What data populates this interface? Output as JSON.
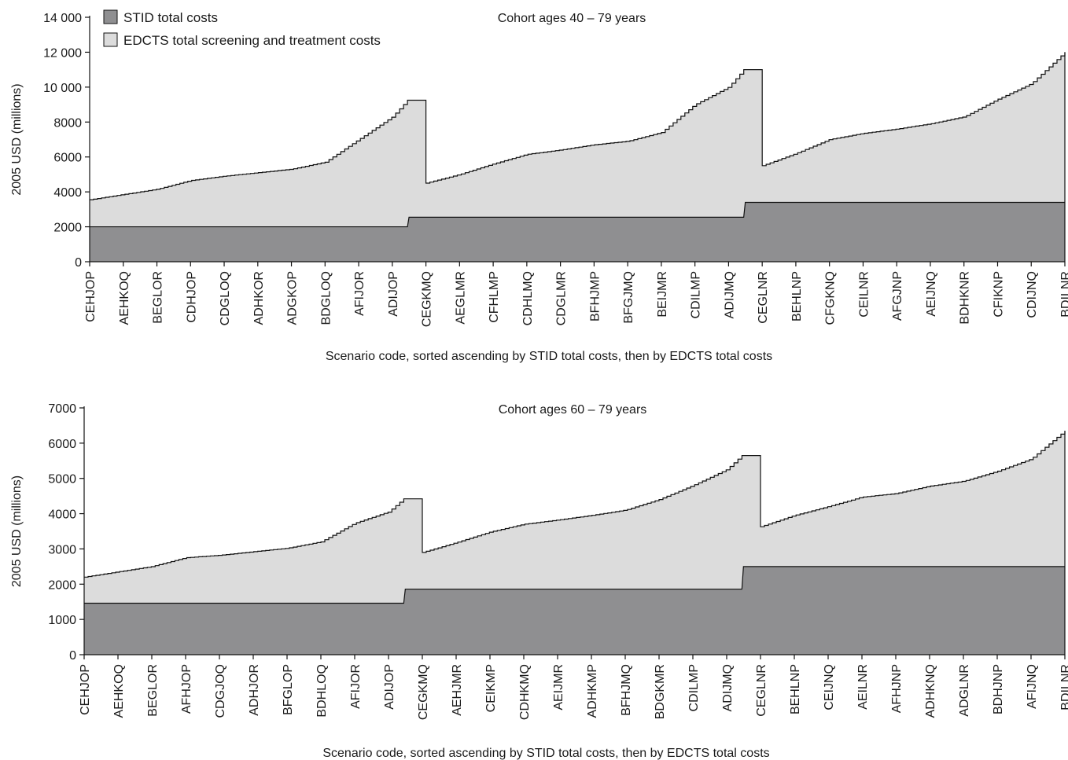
{
  "chart_data": [
    {
      "type": "area",
      "title": "Cohort ages 40 – 79 years",
      "xlabel": "Scenario code, sorted ascending by STID total costs, then by EDCTS total costs",
      "ylabel": "2005 USD (millions)",
      "ylim": [
        0,
        14000
      ],
      "yticks": [
        "0",
        "2000",
        "4000",
        "6000",
        "8000",
        "10 000",
        "12 000",
        "14 000"
      ],
      "yticks_values": [
        0,
        2000,
        4000,
        6000,
        8000,
        10000,
        12000,
        14000
      ],
      "categories": [
        "CEHJOP",
        "AEHKOQ",
        "BEGLOR",
        "CDHJOP",
        "CDGLOQ",
        "ADHKOR",
        "ADGKOP",
        "BDGLOQ",
        "AFIJOR",
        "ADIJOP",
        "CEGKMQ",
        "AEGLMR",
        "CFHLMP",
        "CDHLMQ",
        "CDGLMR",
        "BFHJMP",
        "BFGJMQ",
        "BEIJMR",
        "CDILMP",
        "ADIJMQ",
        "CEGLNR",
        "BEHLNP",
        "CFGKNQ",
        "CEILNR",
        "AFGJNP",
        "AEIJNQ",
        "BDHKNR",
        "CFIKNP",
        "CDIJNQ",
        "BDILNR"
      ],
      "legend": {
        "position": "top-left",
        "entries": [
          "STID total costs",
          "EDCTS total screening and treatment costs"
        ]
      },
      "grid": false,
      "series": [
        {
          "name": "STID total costs",
          "color": "#8f8f91",
          "values": [
            2000,
            2000,
            2000,
            2000,
            2000,
            2000,
            2000,
            2000,
            2000,
            2000,
            2550,
            2550,
            2550,
            2550,
            2550,
            2550,
            2550,
            2550,
            2550,
            2550,
            3400,
            3400,
            3400,
            3400,
            3400,
            3400,
            3400,
            3400,
            3400,
            3400
          ]
        },
        {
          "name": "EDCTS total screening and treatment costs",
          "color": "#dcdcdc",
          "values": [
            3550,
            3850,
            4150,
            4650,
            4900,
            5100,
            5300,
            5700,
            7000,
            8300,
            4500,
            5000,
            5600,
            6150,
            6400,
            6700,
            6900,
            7400,
            9000,
            10000,
            5500,
            6200,
            7000,
            7350,
            7600,
            7900,
            8300,
            9300,
            10200,
            12000
          ]
        }
      ],
      "series_end_values": {
        "STID total costs": 3400,
        "EDCTS total screening and treatment costs": 12150
      },
      "stid_step_end_values": [
        2000,
        2550,
        3400
      ],
      "edcts_group_end_values": [
        9250,
        11000,
        12150
      ]
    },
    {
      "type": "area",
      "title": "Cohort ages 60 – 79 years",
      "xlabel": "Scenario code, sorted ascending by STID total costs, then by EDCTS total costs",
      "ylabel": "2005 USD (millions)",
      "ylim": [
        0,
        7000
      ],
      "yticks": [
        "0",
        "1000",
        "2000",
        "3000",
        "4000",
        "5000",
        "6000",
        "7000"
      ],
      "yticks_values": [
        0,
        1000,
        2000,
        3000,
        4000,
        5000,
        6000,
        7000
      ],
      "categories": [
        "CEHJOP",
        "AEHKOQ",
        "BEGLOR",
        "AFHJOP",
        "CDGJOQ",
        "ADHJOR",
        "BFGLOP",
        "BDHLOQ",
        "AFIJOR",
        "ADIJOP",
        "CEGKMQ",
        "AEHJMR",
        "CEIKMP",
        "CDHKMQ",
        "AEIJMR",
        "ADHKMP",
        "BFHJMQ",
        "BDGKMR",
        "CDILMP",
        "ADIJMQ",
        "CEGLNR",
        "BEHLNP",
        "CEIJNQ",
        "AEILNR",
        "AFHJNP",
        "ADHKNQ",
        "ADGLNR",
        "BDHJNP",
        "AFIJNQ",
        "BDILNR"
      ],
      "legend": {
        "position": "none",
        "entries": []
      },
      "grid": false,
      "series": [
        {
          "name": "STID total costs",
          "color": "#8f8f91",
          "values": [
            1460,
            1460,
            1460,
            1460,
            1460,
            1460,
            1460,
            1460,
            1460,
            1460,
            1860,
            1860,
            1860,
            1860,
            1860,
            1860,
            1860,
            1860,
            1860,
            1860,
            2500,
            2500,
            2500,
            2500,
            2500,
            2500,
            2500,
            2500,
            2500,
            2500
          ]
        },
        {
          "name": "EDCTS total screening and treatment costs",
          "color": "#dcdcdc",
          "values": [
            2200,
            2350,
            2500,
            2750,
            2820,
            2920,
            3020,
            3200,
            3730,
            4050,
            2900,
            3180,
            3480,
            3700,
            3820,
            3950,
            4100,
            4400,
            4800,
            5250,
            3630,
            3950,
            4200,
            4470,
            4570,
            4780,
            4920,
            5200,
            5550,
            6350
          ]
        }
      ],
      "series_end_values": {
        "STID total costs": 2500,
        "EDCTS total screening and treatment costs": 6450
      },
      "stid_step_end_values": [
        1460,
        1860,
        2500
      ],
      "edcts_group_end_values": [
        4420,
        5650,
        6450
      ]
    }
  ]
}
